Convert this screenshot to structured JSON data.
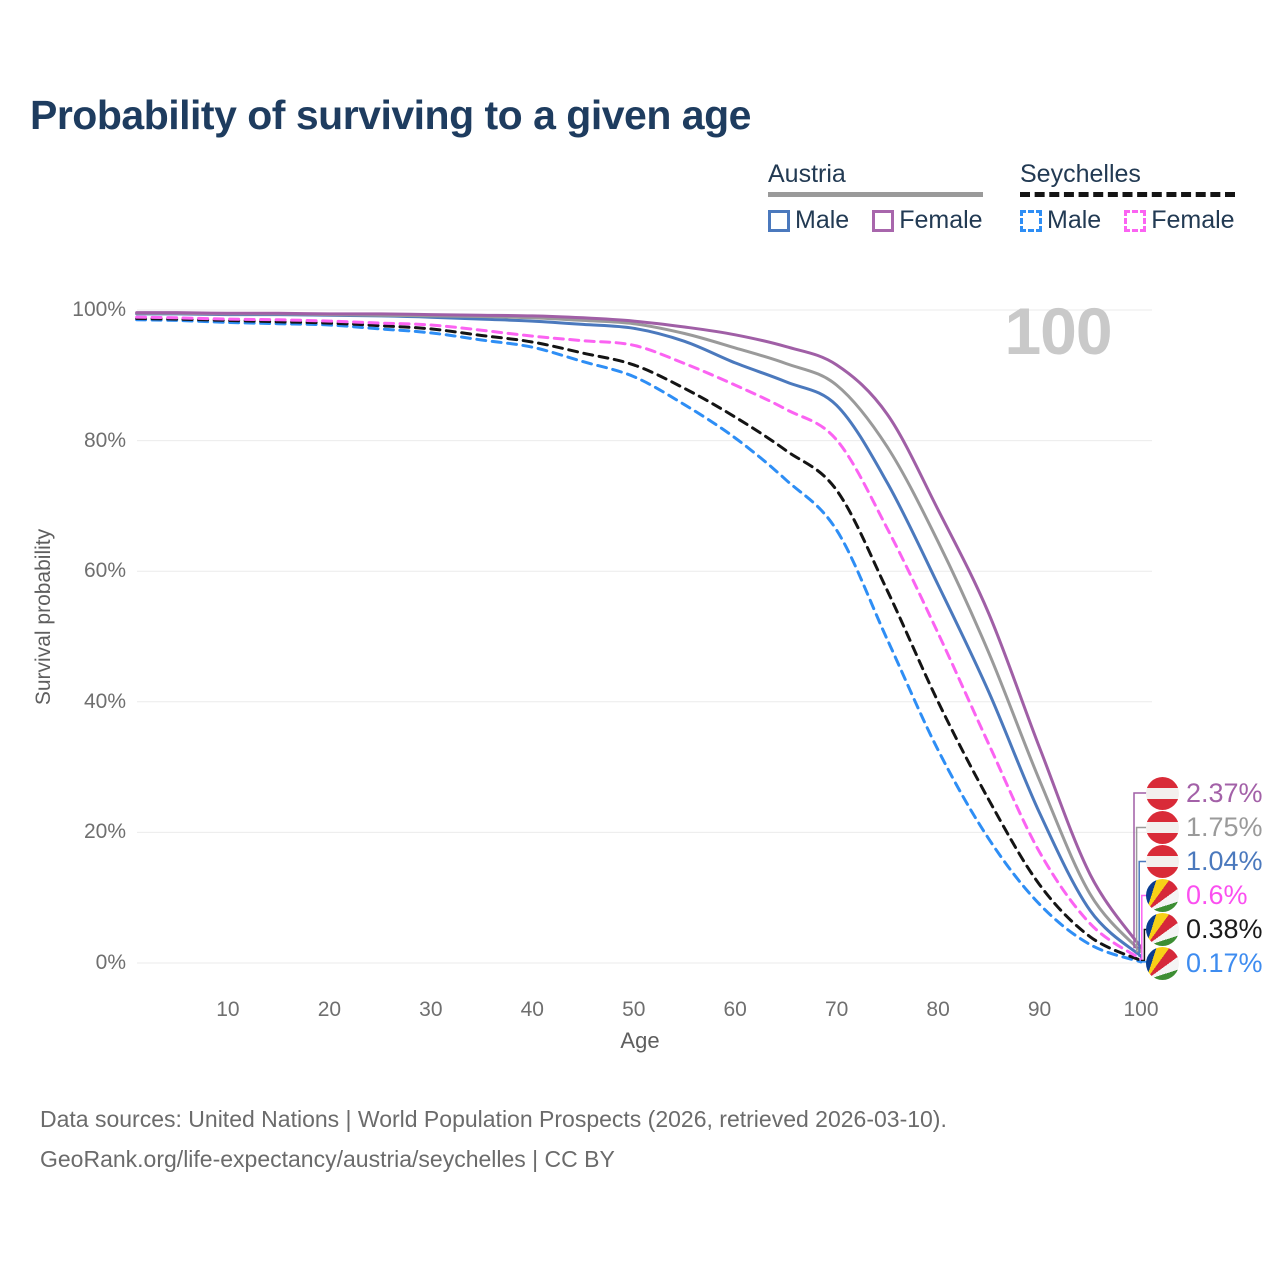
{
  "title": "Probability of surviving to a given age",
  "watermark": "100",
  "legend": {
    "groups": [
      {
        "label": "Austria",
        "line_style": "solid",
        "color": "#9a9a9a",
        "items": [
          {
            "label": "Male",
            "color": "#4b79bd",
            "dashed": false
          },
          {
            "label": "Female",
            "color": "#a866ac",
            "dashed": false
          }
        ]
      },
      {
        "label": "Seychelles",
        "line_style": "dashed",
        "color": "#141414",
        "items": [
          {
            "label": "Male",
            "color": "#2e8ef5",
            "dashed": true
          },
          {
            "label": "Female",
            "color": "#fb63f2",
            "dashed": true
          }
        ]
      }
    ]
  },
  "axes": {
    "y_title": "Survival probability",
    "x_title": "Age",
    "y_ticks": [
      {
        "label": "0%",
        "value": 0
      },
      {
        "label": "20%",
        "value": 20
      },
      {
        "label": "40%",
        "value": 40
      },
      {
        "label": "60%",
        "value": 60
      },
      {
        "label": "80%",
        "value": 80
      },
      {
        "label": "100%",
        "value": 100
      }
    ],
    "x_ticks": [
      {
        "label": "10",
        "value": 10
      },
      {
        "label": "20",
        "value": 20
      },
      {
        "label": "30",
        "value": 30
      },
      {
        "label": "40",
        "value": 40
      },
      {
        "label": "50",
        "value": 50
      },
      {
        "label": "60",
        "value": 60
      },
      {
        "label": "70",
        "value": 70
      },
      {
        "label": "80",
        "value": 80
      },
      {
        "label": "90",
        "value": 90
      },
      {
        "label": "100",
        "value": 100
      }
    ]
  },
  "end_labels": [
    {
      "value": "2.37%",
      "flag": "austria",
      "color": "#a361a8",
      "series": "Austria Female"
    },
    {
      "value": "1.75%",
      "flag": "austria",
      "color": "#9a9a9a",
      "series": "Austria"
    },
    {
      "value": "1.04%",
      "flag": "austria",
      "color": "#4b79bd",
      "series": "Austria Male"
    },
    {
      "value": "0.6%",
      "flag": "seychelles",
      "color": "#fb4ff0",
      "series": "Seychelles Female"
    },
    {
      "value": "0.38%",
      "flag": "seychelles",
      "color": "#1a1a1a",
      "series": "Seychelles"
    },
    {
      "value": "0.17%",
      "flag": "seychelles",
      "color": "#3e8cf0",
      "series": "Seychelles Male"
    }
  ],
  "footer": {
    "line1": "Data sources: United Nations | World Population Prospects (2026, retrieved 2026-03-10).",
    "line2": "GeoRank.org/life-expectancy/austria/seychelles | CC BY"
  },
  "chart_data": {
    "type": "line",
    "title": "Probability of surviving to a given age",
    "xlabel": "Age",
    "ylabel": "Survival probability",
    "xlim": [
      0,
      100
    ],
    "ylim": [
      0,
      100
    ],
    "grid": "horizontal",
    "legend_position": "top-right",
    "x": [
      1,
      5,
      10,
      15,
      20,
      25,
      30,
      35,
      40,
      45,
      50,
      55,
      60,
      65,
      70,
      75,
      80,
      85,
      90,
      95,
      100
    ],
    "series": [
      {
        "name": "Seychelles Male",
        "color": "#2e8ef5",
        "dashed": true,
        "values": [
          98.5,
          98.4,
          98.1,
          97.9,
          97.7,
          97.1,
          96.5,
          95.4,
          94.3,
          92.1,
          89.8,
          85.5,
          80.4,
          74.0,
          66.3,
          49.5,
          32.6,
          19.0,
          9.0,
          2.8,
          0.17
        ],
        "end_label": "0.17%"
      },
      {
        "name": "Seychelles",
        "color": "#141414",
        "dashed": true,
        "values": [
          98.7,
          98.6,
          98.4,
          98.2,
          98.0,
          97.6,
          97.1,
          96.1,
          95.1,
          93.4,
          91.6,
          88.0,
          83.6,
          78.5,
          72.4,
          57.0,
          40.0,
          25.0,
          12.0,
          4.0,
          0.38
        ],
        "end_label": "0.38%"
      },
      {
        "name": "Seychelles Female",
        "color": "#fb63f2",
        "dashed": true,
        "values": [
          98.9,
          98.8,
          98.6,
          98.5,
          98.3,
          98.0,
          97.7,
          96.9,
          96.0,
          95.3,
          94.6,
          91.8,
          88.5,
          84.8,
          80.1,
          66.5,
          50.5,
          33.5,
          17.0,
          6.0,
          0.6
        ],
        "end_label": "0.6%"
      },
      {
        "name": "Austria Male",
        "color": "#4b79bd",
        "dashed": false,
        "values": [
          99.4,
          99.4,
          99.3,
          99.3,
          99.2,
          99.1,
          98.9,
          98.6,
          98.3,
          97.8,
          97.2,
          95.2,
          91.9,
          89.0,
          85.4,
          73.5,
          57.9,
          41.5,
          23.0,
          8.0,
          1.04
        ],
        "end_label": "1.04%"
      },
      {
        "name": "Austria",
        "color": "#9a9a9a",
        "dashed": false,
        "values": [
          99.5,
          99.5,
          99.4,
          99.4,
          99.3,
          99.2,
          99.1,
          99.0,
          98.8,
          98.4,
          97.9,
          96.4,
          94.2,
          91.8,
          88.5,
          79.0,
          64.5,
          47.5,
          28.0,
          10.5,
          1.75
        ],
        "end_label": "1.75%"
      },
      {
        "name": "Austria Female",
        "color": "#a05fa6",
        "dashed": false,
        "values": [
          99.6,
          99.6,
          99.5,
          99.5,
          99.4,
          99.4,
          99.3,
          99.2,
          99.1,
          98.8,
          98.3,
          97.4,
          96.2,
          94.4,
          91.6,
          84.0,
          69.4,
          53.5,
          33.0,
          13.5,
          2.37
        ],
        "end_label": "2.37%"
      }
    ]
  }
}
